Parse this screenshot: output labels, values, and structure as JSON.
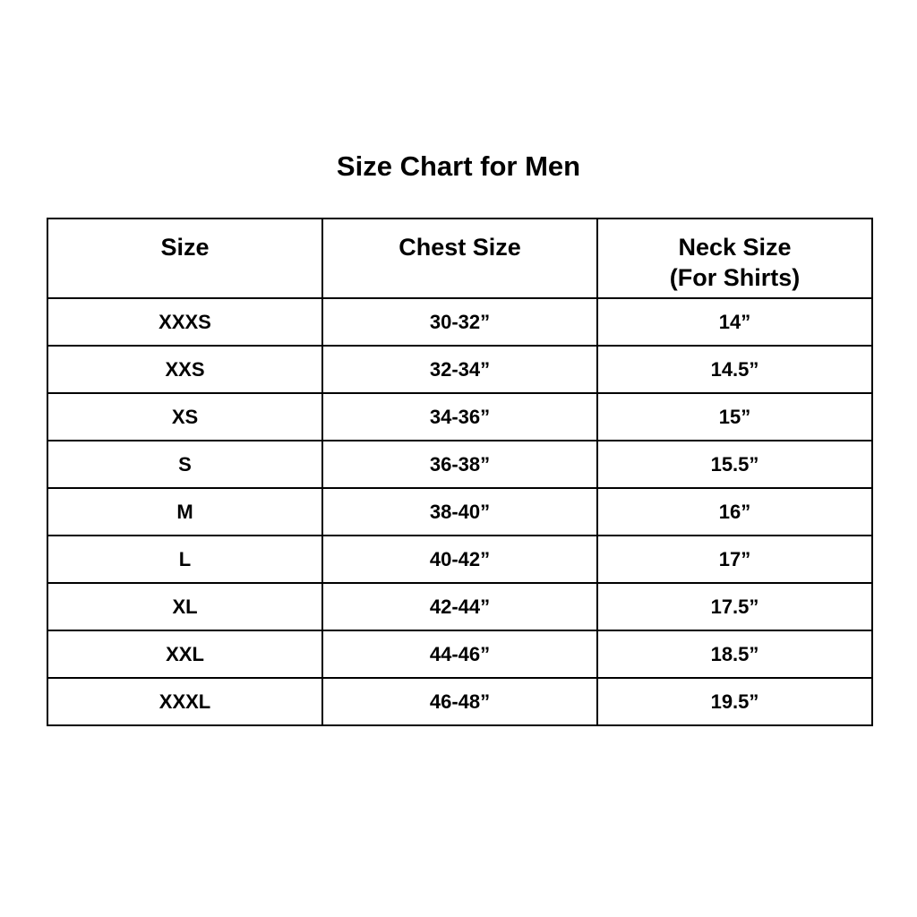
{
  "title": "Size Chart for Men",
  "table": {
    "headers": [
      {
        "line1": "Size",
        "line2": ""
      },
      {
        "line1": "Chest Size",
        "line2": ""
      },
      {
        "line1": "Neck Size",
        "line2": "(For Shirts)"
      }
    ],
    "rows": [
      [
        "XXXS",
        "30-32”",
        "14”"
      ],
      [
        "XXS",
        "32-34”",
        "14.5”"
      ],
      [
        "XS",
        "34-36”",
        "15”"
      ],
      [
        "S",
        "36-38”",
        "15.5”"
      ],
      [
        "M",
        "38-40”",
        "16”"
      ],
      [
        "L",
        "40-42”",
        "17”"
      ],
      [
        "XL",
        "42-44”",
        "17.5”"
      ],
      [
        "XXL",
        "44-46”",
        "18.5”"
      ],
      [
        "XXXL",
        "46-48”",
        "19.5”"
      ]
    ]
  }
}
